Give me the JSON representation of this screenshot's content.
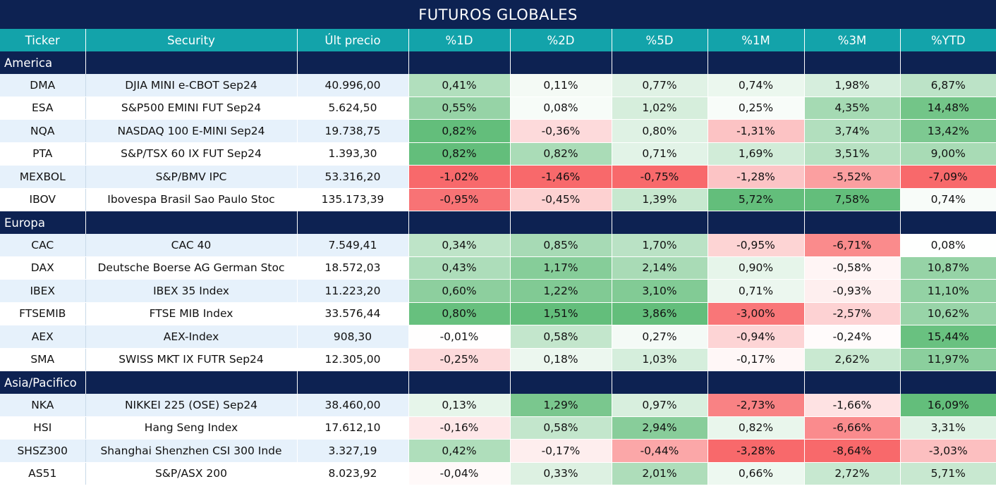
{
  "title": "FUTUROS GLOBALES",
  "columns": [
    "Ticker",
    "Security",
    "Últ precio",
    "%1D",
    "%2D",
    "%5D",
    "%1M",
    "%3M",
    "%YTD"
  ],
  "colors": {
    "title_bg": "#0d2252",
    "header_bg": "#13a3aa",
    "section_bg": "#0d2252",
    "row_light": "#e6f1fb",
    "positive": "#63be7b",
    "negative": "#f8696b"
  },
  "sections": [
    {
      "name": "America",
      "rows": [
        {
          "ticker": "DMA",
          "security": "DJIA MINI e-CBOT  Sep24",
          "price": "40.996,00",
          "d1": "0,41%",
          "d2": "0,11%",
          "d5": "0,77%",
          "m1": "0,74%",
          "m3": "1,98%",
          "ytd": "6,87%"
        },
        {
          "ticker": "ESA",
          "security": "S&P500 EMINI FUT  Sep24",
          "price": "5.624,50",
          "d1": "0,55%",
          "d2": "0,08%",
          "d5": "1,02%",
          "m1": "0,25%",
          "m3": "4,35%",
          "ytd": "14,48%"
        },
        {
          "ticker": "NQA",
          "security": "NASDAQ 100 E-MINI Sep24",
          "price": "19.738,75",
          "d1": "0,82%",
          "d2": "-0,36%",
          "d5": "0,80%",
          "m1": "-1,31%",
          "m3": "3,74%",
          "ytd": "13,42%"
        },
        {
          "ticker": "PTA",
          "security": "S&P/TSX 60 IX FUT Sep24",
          "price": "1.393,30",
          "d1": "0,82%",
          "d2": "0,82%",
          "d5": "0,71%",
          "m1": "1,69%",
          "m3": "3,51%",
          "ytd": "9,00%"
        },
        {
          "ticker": "MEXBOL",
          "security": "S&P/BMV IPC",
          "price": "53.316,20",
          "d1": "-1,02%",
          "d2": "-1,46%",
          "d5": "-0,75%",
          "m1": "-1,28%",
          "m3": "-5,52%",
          "ytd": "-7,09%"
        },
        {
          "ticker": "IBOV",
          "security": "Ibovespa Brasil Sao Paulo Stoc",
          "price": "135.173,39",
          "d1": "-0,95%",
          "d2": "-0,45%",
          "d5": "1,39%",
          "m1": "5,72%",
          "m3": "7,58%",
          "ytd": "0,74%"
        }
      ]
    },
    {
      "name": "Europa",
      "rows": [
        {
          "ticker": "CAC",
          "security": "CAC 40",
          "price": "7.549,41",
          "d1": "0,34%",
          "d2": "0,85%",
          "d5": "1,70%",
          "m1": "-0,95%",
          "m3": "-6,71%",
          "ytd": "0,08%"
        },
        {
          "ticker": "DAX",
          "security": "Deutsche Boerse AG German Stoc",
          "price": "18.572,03",
          "d1": "0,43%",
          "d2": "1,17%",
          "d5": "2,14%",
          "m1": "0,90%",
          "m3": "-0,58%",
          "ytd": "10,87%"
        },
        {
          "ticker": "IBEX",
          "security": "IBEX 35 Index",
          "price": "11.223,20",
          "d1": "0,60%",
          "d2": "1,22%",
          "d5": "3,10%",
          "m1": "0,71%",
          "m3": "-0,93%",
          "ytd": "11,10%"
        },
        {
          "ticker": "FTSEMIB",
          "security": "FTSE MIB Index",
          "price": "33.576,44",
          "d1": "0,80%",
          "d2": "1,51%",
          "d5": "3,86%",
          "m1": "-3,00%",
          "m3": "-2,57%",
          "ytd": "10,62%"
        },
        {
          "ticker": "AEX",
          "security": "AEX-Index",
          "price": "908,30",
          "d1": "-0,01%",
          "d2": "0,58%",
          "d5": "0,27%",
          "m1": "-0,94%",
          "m3": "-0,24%",
          "ytd": "15,44%"
        },
        {
          "ticker": "SMA",
          "security": "SWISS MKT IX FUTR Sep24",
          "price": "12.305,00",
          "d1": "-0,25%",
          "d2": "0,18%",
          "d5": "1,03%",
          "m1": "-0,17%",
          "m3": "2,62%",
          "ytd": "11,97%"
        }
      ]
    },
    {
      "name": "Asia/Pacifico",
      "rows": [
        {
          "ticker": "NKA",
          "security": "NIKKEI 225  (OSE) Sep24",
          "price": "38.460,00",
          "d1": "0,13%",
          "d2": "1,29%",
          "d5": "0,97%",
          "m1": "-2,73%",
          "m3": "-1,66%",
          "ytd": "16,09%"
        },
        {
          "ticker": "HSI",
          "security": "Hang Seng Index",
          "price": "17.612,10",
          "d1": "-0,16%",
          "d2": "0,58%",
          "d5": "2,94%",
          "m1": "0,82%",
          "m3": "-6,66%",
          "ytd": "3,31%"
        },
        {
          "ticker": "SHSZ300",
          "security": "Shanghai Shenzhen CSI 300 Inde",
          "price": "3.327,19",
          "d1": "0,42%",
          "d2": "-0,17%",
          "d5": "-0,44%",
          "m1": "-3,28%",
          "m3": "-8,64%",
          "ytd": "-3,03%"
        },
        {
          "ticker": "AS51",
          "security": "S&P/ASX 200",
          "price": "8.023,92",
          "d1": "-0,04%",
          "d2": "0,33%",
          "d5": "2,01%",
          "m1": "0,66%",
          "m3": "2,72%",
          "ytd": "5,71%"
        }
      ]
    }
  ]
}
